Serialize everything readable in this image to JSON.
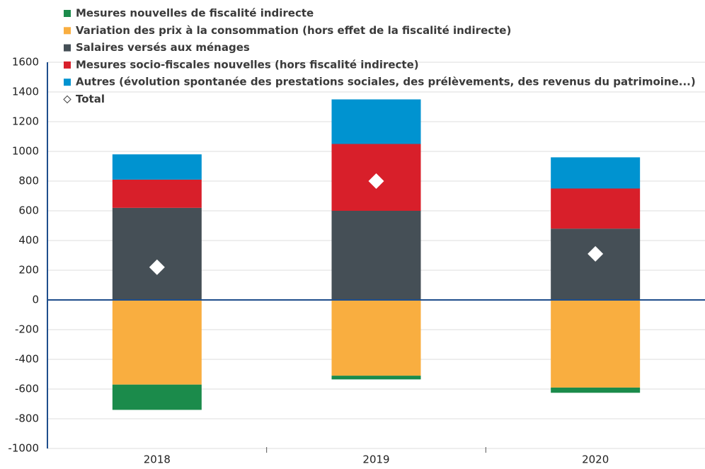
{
  "chart_data": {
    "type": "stacked_bar",
    "categories": [
      "2018",
      "2019",
      "2020"
    ],
    "series": [
      {
        "name": "Mesures nouvelles de fiscalité indirecte",
        "color": "#1b8b4b",
        "values": [
          -170,
          -25,
          -35
        ]
      },
      {
        "name": "Variation des prix à la consommation (hors effet de la fiscalité indirecte)",
        "color": "#f9ae40",
        "values": [
          -570,
          -510,
          -590
        ]
      },
      {
        "name": "Salaires versés aux ménages",
        "color": "#454f56",
        "values": [
          620,
          600,
          480
        ]
      },
      {
        "name": "Mesures socio-fiscales nouvelles (hors fiscalité indirecte)",
        "color": "#d81f2a",
        "values": [
          190,
          450,
          270
        ]
      },
      {
        "name": "Autres (évolution spontanée des prestations sociales, des prélèvements, des revenus du patrimoine...)",
        "color": "#0093d0",
        "values": [
          170,
          300,
          210
        ]
      },
      {
        "name": "Total",
        "color": "#ffffff",
        "marker": "diamond",
        "values": [
          220,
          800,
          310
        ]
      }
    ],
    "ylim": [
      -1000,
      1600
    ],
    "yticks": [
      -1000,
      -800,
      -600,
      -400,
      -200,
      0,
      200,
      400,
      600,
      800,
      1000,
      1200,
      1400,
      1600
    ],
    "grid": true
  }
}
